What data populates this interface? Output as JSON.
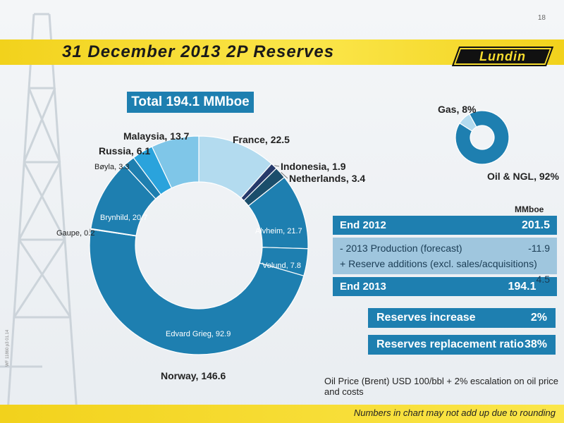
{
  "page_number": "18",
  "title": "31 December 2013 2P Reserves",
  "logo_text": "Lundin",
  "total_label": "Total 194.1 MMboe",
  "colors": {
    "accent_blue": "#1e7fb0",
    "light_blue": "#9fc6de",
    "banner_yellow": "#f5d928"
  },
  "chart_data": [
    {
      "type": "pie",
      "title": "",
      "slices": [
        {
          "label": "France, 22.5",
          "value": 22.5,
          "color": "#b3dbef"
        },
        {
          "label": "Indonesia, 1.9",
          "value": 1.9,
          "color": "#263a6b"
        },
        {
          "label": "Netherlands, 3.4",
          "value": 3.4,
          "color": "#1b4e6b"
        },
        {
          "label": "Alvheim, 21.7",
          "value": 21.7,
          "color": "#1e7fb0"
        },
        {
          "label": "Volund, 7.8",
          "value": 7.8,
          "color": "#1e7fb0"
        },
        {
          "label": "Edvard Grieg, 92.9",
          "value": 92.9,
          "color": "#1e7fb0"
        },
        {
          "label": "Gaupe, 0.2",
          "value": 0.2,
          "color": "#1e7fb0"
        },
        {
          "label": "Brynhild, 20.7",
          "value": 20.7,
          "color": "#1e7fb0"
        },
        {
          "label": "Bøyla, 3.3",
          "value": 3.3,
          "color": "#1e7fb0"
        },
        {
          "label": "Russia, 6.1",
          "value": 6.1,
          "color": "#2aa3dc"
        },
        {
          "label": "Malaysia, 13.7",
          "value": 13.7,
          "color": "#7fc6e8"
        }
      ],
      "group_label": "Norway, 146.6"
    },
    {
      "type": "pie",
      "title": "",
      "slices": [
        {
          "label": "Oil & NGL, 92%",
          "value": 92,
          "color": "#1e7fb0"
        },
        {
          "label": "Gas, 8%",
          "value": 8,
          "color": "#b3dbef"
        }
      ]
    }
  ],
  "table": {
    "unit": "MMboe",
    "end_2012_label": "End 2012",
    "end_2012_value": "201.5",
    "production_label": "- 2013 Production (forecast)",
    "production_value": "-11.9",
    "additions_label": "+ Reserve additions (excl. sales/acquisitions)",
    "additions_value": "4.5",
    "end_2013_label": "End 2013",
    "end_2013_value": "194.1"
  },
  "kpis": {
    "increase_label": "Reserves increase",
    "increase_value": "2%",
    "replacement_label": "Reserves replacement ratio",
    "replacement_value": "38%"
  },
  "oil_price_note": "Oil Price (Brent) USD 100/bbl + 2% escalation on oil price and costs",
  "rounding_note": "Numbers in chart may not add up due to rounding",
  "doc_id": "WF 11860 p3 01.14"
}
